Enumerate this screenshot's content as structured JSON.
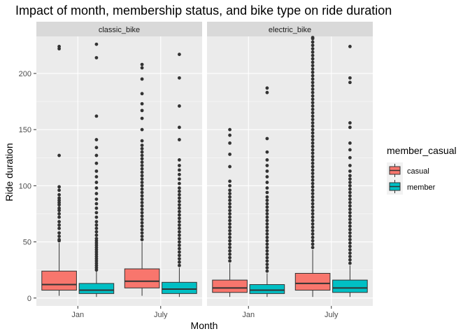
{
  "chart_data": {
    "type": "boxplot",
    "title": "Impact of month, membership status, and bike type on ride duration",
    "xlabel": "Month",
    "ylabel": "Ride duration",
    "categories": [
      "Jan",
      "July"
    ],
    "yticks": [
      0,
      50,
      100,
      150,
      200
    ],
    "ylim": [
      -7,
      233
    ],
    "grid": true,
    "legend": {
      "title": "member_casual",
      "position": "right",
      "entries": [
        {
          "name": "casual",
          "color": "#F8766D"
        },
        {
          "name": "member",
          "color": "#00BFC4"
        }
      ]
    },
    "panels": [
      {
        "label": "classic_bike",
        "groups": [
          {
            "month": "Jan",
            "series": "casual",
            "lower_whisker": 2,
            "q1": 7,
            "median": 12,
            "q3": 24,
            "upper_whisker": 49,
            "outliers": [
              51,
              52,
              55,
              58,
              62,
              65,
              68,
              72,
              75,
              78,
              80,
              83,
              85,
              87,
              89,
              92,
              96,
              99,
              127,
              222,
              224
            ]
          },
          {
            "month": "Jan",
            "series": "member",
            "lower_whisker": 1,
            "q1": 4,
            "median": 7,
            "q3": 13,
            "upper_whisker": 24,
            "outliers": [
              25,
              27,
              29,
              31,
              33,
              35,
              37,
              39,
              41,
              43,
              45,
              47,
              49,
              51,
              53,
              56,
              59,
              62,
              65,
              68,
              72,
              76,
              80,
              84,
              88,
              93,
              98,
              103,
              108,
              113,
              120,
              127,
              134,
              141,
              162,
              214,
              226
            ]
          },
          {
            "month": "July",
            "series": "casual",
            "lower_whisker": 2,
            "q1": 9,
            "median": 15,
            "q3": 26,
            "upper_whisker": 50,
            "outliers": [
              52,
              55,
              58,
              61,
              64,
              67,
              70,
              73,
              76,
              79,
              82,
              85,
              88,
              91,
              94,
              97,
              100,
              103,
              106,
              109,
              112,
              115,
              118,
              121,
              124,
              127,
              130,
              133,
              136,
              140,
              150,
              160,
              167,
              173,
              182,
              195,
              205,
              208
            ]
          },
          {
            "month": "July",
            "series": "member",
            "lower_whisker": 1,
            "q1": 4,
            "median": 8,
            "q3": 14,
            "upper_whisker": 27,
            "outliers": [
              29,
              32,
              35,
              38,
              41,
              44,
              47,
              50,
              53,
              56,
              59,
              62,
              65,
              68,
              71,
              74,
              77,
              80,
              83,
              86,
              89,
              92,
              95,
              98,
              102,
              106,
              110,
              114,
              118,
              123,
              141,
              152,
              171,
              196,
              217
            ]
          }
        ]
      },
      {
        "label": "electric_bike",
        "groups": [
          {
            "month": "Jan",
            "series": "casual",
            "lower_whisker": 1,
            "q1": 5,
            "median": 9,
            "q3": 16,
            "upper_whisker": 31,
            "outliers": [
              33,
              36,
              39,
              42,
              45,
              48,
              51,
              54,
              57,
              60,
              63,
              66,
              69,
              72,
              75,
              78,
              81,
              84,
              87,
              90,
              93,
              96,
              100,
              104,
              117,
              128,
              138,
              145,
              150
            ]
          },
          {
            "month": "Jan",
            "series": "member",
            "lower_whisker": 1,
            "q1": 4,
            "median": 7,
            "q3": 12,
            "upper_whisker": 22,
            "outliers": [
              24,
              27,
              30,
              33,
              36,
              39,
              42,
              45,
              48,
              51,
              54,
              57,
              60,
              63,
              66,
              69,
              72,
              75,
              78,
              81,
              84,
              87,
              90,
              94,
              98,
              103,
              108,
              113,
              118,
              123,
              130,
              142,
              183,
              187
            ]
          },
          {
            "month": "July",
            "series": "casual",
            "lower_whisker": 1,
            "q1": 7,
            "median": 13,
            "q3": 22,
            "upper_whisker": 43,
            "outliers": [
              45,
              48,
              51,
              54,
              57,
              60,
              63,
              66,
              69,
              72,
              75,
              78,
              81,
              84,
              87,
              90,
              93,
              96,
              99,
              102,
              105,
              108,
              111,
              114,
              117,
              120,
              123,
              126,
              129,
              132,
              135,
              138,
              141,
              144,
              147,
              150,
              153,
              156,
              159,
              162,
              165,
              168,
              171,
              174,
              177,
              180,
              183,
              186,
              189,
              192,
              195,
              198,
              201,
              204,
              207,
              210,
              213,
              216,
              219,
              222,
              225,
              228,
              231,
              232
            ]
          },
          {
            "month": "July",
            "series": "member",
            "lower_whisker": 1,
            "q1": 5,
            "median": 9,
            "q3": 16,
            "upper_whisker": 29,
            "outliers": [
              31,
              34,
              37,
              40,
              43,
              46,
              49,
              52,
              55,
              58,
              61,
              64,
              67,
              70,
              73,
              76,
              79,
              82,
              85,
              88,
              91,
              94,
              97,
              100,
              103,
              106,
              109,
              113,
              118,
              125,
              132,
              138,
              152,
              156,
              192,
              196,
              224
            ]
          }
        ]
      }
    ]
  }
}
